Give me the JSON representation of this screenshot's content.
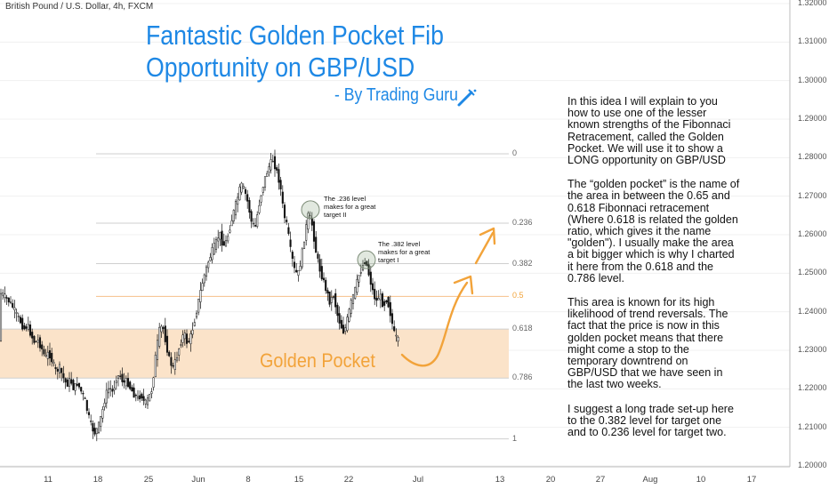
{
  "header": {
    "pair_label": "British Pound / U.S. Dollar, 4h, FXCM",
    "title_line1": "Fantastic Golden Pocket Fib",
    "title_line2": "Opportunity on GBP/USD",
    "byline": "- By Trading Guru"
  },
  "description": [
    "In this idea I will explain to you how to use one of the lesser known strengths of the Fibonnaci Retracement, called the Golden Pocket. We will use it to show a LONG opportunity on GBP/USD",
    "The “golden pocket” is the name of the area in between the 0.65 and 0.618 Fibonnaci retracement (Where 0.618 is related the golden ratio, which gives it the name \"golden\"). I usually make the area a bit bigger which is why I charted it here from the 0.618 and the 0.786 level.",
    "This area is known for its high likelihood of trend reversals. The fact that the price is now in this golden pocket means that there might come a stop to the temporary downtrend on GBP/USD that we have seen in the last two weeks.",
    "I suggest a long trade set-up here to the 0.382 level for target one and to 0.236 level for target two."
  ],
  "annotations": {
    "note_236": "The .236 level makes for a great target II",
    "note_382": "The .382 level makes for a great target I",
    "golden_pocket_label": "Golden Pocket"
  },
  "colors": {
    "title": "#1e88e5",
    "golden_pocket_fill": "#fbe3c9",
    "orange": "#f2a33a",
    "candle": "#111111",
    "grid": "#d9d9d9"
  },
  "chart_data": {
    "type": "candlestick",
    "symbol": "GBP/USD",
    "timeframe": "4h",
    "y_axis": {
      "ticks": [
        "1.32000",
        "1.31000",
        "1.30000",
        "1.29000",
        "1.28000",
        "1.27000",
        "1.26000",
        "1.25000",
        "1.24000",
        "1.23000",
        "1.22000",
        "1.21000",
        "1.20000"
      ],
      "range": [
        1.2,
        1.32
      ]
    },
    "x_axis": {
      "ticks": [
        "11",
        "18",
        "25",
        "Jun",
        "8",
        "15",
        "22",
        "Jul",
        "13",
        "20",
        "27",
        "Aug",
        "10",
        "17"
      ]
    },
    "fib_levels": [
      {
        "label": "0",
        "price": 1.281
      },
      {
        "label": "0.236",
        "price": 1.263
      },
      {
        "label": "0.382",
        "price": 1.2525
      },
      {
        "label": "0.5",
        "price": 1.244
      },
      {
        "label": "0.618",
        "price": 1.2355
      },
      {
        "label": "0.786",
        "price": 1.2228
      },
      {
        "label": "1",
        "price": 1.207
      }
    ],
    "golden_pocket": {
      "from_level": "0.618",
      "to_level": "0.786"
    },
    "price_path": [
      [
        0,
        1.245
      ],
      [
        4,
        1.2445
      ],
      [
        8,
        1.2435
      ],
      [
        12,
        1.2425
      ],
      [
        16,
        1.241
      ],
      [
        20,
        1.239
      ],
      [
        24,
        1.2375
      ],
      [
        28,
        1.2355
      ],
      [
        32,
        1.2365
      ],
      [
        36,
        1.234
      ],
      [
        40,
        1.232
      ],
      [
        44,
        1.2325
      ],
      [
        48,
        1.2305
      ],
      [
        52,
        1.228
      ],
      [
        56,
        1.2295
      ],
      [
        60,
        1.227
      ],
      [
        64,
        1.2245
      ],
      [
        68,
        1.2255
      ],
      [
        72,
        1.223
      ],
      [
        76,
        1.221
      ],
      [
        80,
        1.2225
      ],
      [
        84,
        1.22
      ],
      [
        88,
        1.2215
      ],
      [
        92,
        1.2195
      ],
      [
        96,
        1.2175
      ],
      [
        100,
        1.2135
      ],
      [
        104,
        1.21
      ],
      [
        108,
        1.2085
      ],
      [
        112,
        1.2105
      ],
      [
        116,
        1.214
      ],
      [
        120,
        1.2185
      ],
      [
        124,
        1.2205
      ],
      [
        128,
        1.219
      ],
      [
        132,
        1.223
      ],
      [
        136,
        1.2235
      ],
      [
        140,
        1.2215
      ],
      [
        144,
        1.222
      ],
      [
        148,
        1.22
      ],
      [
        152,
        1.2185
      ],
      [
        156,
        1.2175
      ],
      [
        160,
        1.2185
      ],
      [
        164,
        1.216
      ],
      [
        168,
        1.2175
      ],
      [
        172,
        1.22
      ],
      [
        176,
        1.2285
      ],
      [
        180,
        1.235
      ],
      [
        184,
        1.2365
      ],
      [
        188,
        1.2315
      ],
      [
        192,
        1.227
      ],
      [
        196,
        1.2255
      ],
      [
        200,
        1.2285
      ],
      [
        204,
        1.232
      ],
      [
        208,
        1.2345
      ],
      [
        212,
        1.2315
      ],
      [
        216,
        1.234
      ],
      [
        220,
        1.238
      ],
      [
        224,
        1.2425
      ],
      [
        228,
        1.247
      ],
      [
        232,
        1.2505
      ],
      [
        236,
        1.2535
      ],
      [
        240,
        1.256
      ],
      [
        244,
        1.258
      ],
      [
        248,
        1.2605
      ],
      [
        252,
        1.257
      ],
      [
        256,
        1.2585
      ],
      [
        260,
        1.2625
      ],
      [
        264,
        1.266
      ],
      [
        268,
        1.2695
      ],
      [
        272,
        1.273
      ],
      [
        276,
        1.2715
      ],
      [
        280,
        1.268
      ],
      [
        284,
        1.263
      ],
      [
        288,
        1.262
      ],
      [
        292,
        1.2675
      ],
      [
        296,
        1.272
      ],
      [
        300,
        1.2755
      ],
      [
        304,
        1.278
      ],
      [
        308,
        1.2795
      ],
      [
        312,
        1.2765
      ],
      [
        316,
        1.273
      ],
      [
        320,
        1.2655
      ],
      [
        324,
        1.262
      ],
      [
        328,
        1.2555
      ],
      [
        332,
        1.251
      ],
      [
        336,
        1.2495
      ],
      [
        340,
        1.254
      ],
      [
        344,
        1.2605
      ],
      [
        348,
        1.2655
      ],
      [
        352,
        1.2625
      ],
      [
        356,
        1.256
      ],
      [
        360,
        1.2515
      ],
      [
        364,
        1.2485
      ],
      [
        368,
        1.2455
      ],
      [
        372,
        1.2425
      ],
      [
        376,
        1.2445
      ],
      [
        380,
        1.2395
      ],
      [
        384,
        1.2365
      ],
      [
        388,
        1.2345
      ],
      [
        392,
        1.2385
      ],
      [
        396,
        1.2425
      ],
      [
        400,
        1.2455
      ],
      [
        404,
        1.249
      ],
      [
        408,
        1.2515
      ],
      [
        412,
        1.2535
      ],
      [
        416,
        1.2495
      ],
      [
        420,
        1.2455
      ],
      [
        424,
        1.2425
      ],
      [
        428,
        1.2445
      ],
      [
        432,
        1.2415
      ],
      [
        436,
        1.2435
      ],
      [
        440,
        1.2395
      ],
      [
        444,
        1.2345
      ],
      [
        448,
        1.2325
      ]
    ]
  }
}
